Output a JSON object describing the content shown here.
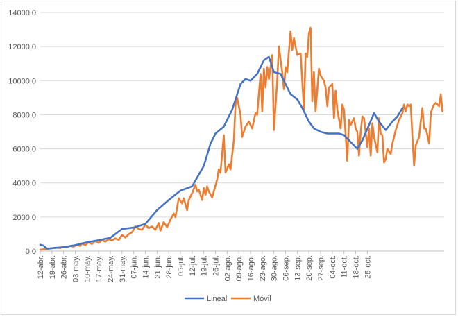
{
  "chart_data": {
    "type": "line",
    "title": "",
    "xlabel": "",
    "ylabel": "",
    "ylim": [
      0,
      14000
    ],
    "yticks": [
      "0,0",
      "2000,0",
      "4000,0",
      "6000,0",
      "8000,0",
      "10000,0",
      "12000,0",
      "14000,0"
    ],
    "ytick_values": [
      0,
      2000,
      4000,
      6000,
      8000,
      10000,
      12000,
      14000
    ],
    "grid": "horizontal",
    "legend_position": "bottom",
    "xtick_labels": [
      "12-abr.",
      "19-abr.",
      "26-abr.",
      "03-may.",
      "10-may.",
      "17-may.",
      "24-may.",
      "31-may.",
      "07-jun.",
      "14-jun.",
      "21-jun.",
      "28-jun.",
      "05-jul.",
      "12-jul.",
      "19-jul.",
      "26-jul.",
      "02-ago.",
      "09-ago.",
      "16-ago.",
      "23-ago.",
      "30-ago.",
      "06-sep.",
      "13-sep.",
      "20-sep.",
      "27-sep.",
      "04-oct.",
      "11-oct.",
      "18-oct.",
      "25-oct."
    ],
    "xtick_day_step": 7,
    "series": [
      {
        "name": "Lineal",
        "color": "#4472c4",
        "points": [
          [
            0,
            380
          ],
          [
            2,
            320
          ],
          [
            4,
            150
          ],
          [
            7,
            170
          ],
          [
            14,
            230
          ],
          [
            21,
            350
          ],
          [
            28,
            520
          ],
          [
            35,
            640
          ],
          [
            42,
            780
          ],
          [
            49,
            1300
          ],
          [
            56,
            1380
          ],
          [
            63,
            1600
          ],
          [
            70,
            2400
          ],
          [
            77,
            3000
          ],
          [
            84,
            3550
          ],
          [
            91,
            3800
          ],
          [
            98,
            5000
          ],
          [
            102,
            6300
          ],
          [
            105,
            6900
          ],
          [
            110,
            7300
          ],
          [
            115,
            8300
          ],
          [
            120,
            9800
          ],
          [
            123,
            10100
          ],
          [
            126,
            10000
          ],
          [
            130,
            10400
          ],
          [
            134,
            11200
          ],
          [
            137,
            11400
          ],
          [
            140,
            10500
          ],
          [
            144,
            10400
          ],
          [
            147,
            9800
          ],
          [
            150,
            9200
          ],
          [
            154,
            8900
          ],
          [
            157,
            8400
          ],
          [
            161,
            7600
          ],
          [
            164,
            7200
          ],
          [
            168,
            7000
          ],
          [
            172,
            6900
          ],
          [
            175,
            6900
          ],
          [
            179,
            6900
          ],
          [
            182,
            6800
          ],
          [
            186,
            6400
          ],
          [
            190,
            6000
          ],
          [
            193,
            6500
          ],
          [
            197,
            7400
          ],
          [
            200,
            8100
          ],
          [
            203,
            7600
          ],
          [
            207,
            7100
          ],
          [
            211,
            7600
          ],
          [
            214,
            7900
          ],
          [
            217,
            8400
          ]
        ]
      },
      {
        "name": "Móvil",
        "color": "#ed7d31",
        "points": [
          [
            0,
            80
          ],
          [
            3,
            120
          ],
          [
            6,
            150
          ],
          [
            9,
            200
          ],
          [
            12,
            180
          ],
          [
            14,
            250
          ],
          [
            16,
            230
          ],
          [
            18,
            300
          ],
          [
            20,
            260
          ],
          [
            22,
            380
          ],
          [
            24,
            300
          ],
          [
            25,
            450
          ],
          [
            27,
            350
          ],
          [
            29,
            520
          ],
          [
            31,
            420
          ],
          [
            33,
            600
          ],
          [
            35,
            480
          ],
          [
            37,
            650
          ],
          [
            39,
            550
          ],
          [
            41,
            700
          ],
          [
            43,
            620
          ],
          [
            45,
            750
          ],
          [
            47,
            650
          ],
          [
            49,
            950
          ],
          [
            51,
            800
          ],
          [
            53,
            1000
          ],
          [
            55,
            1100
          ],
          [
            57,
            1450
          ],
          [
            59,
            1300
          ],
          [
            61,
            1250
          ],
          [
            63,
            1550
          ],
          [
            65,
            1350
          ],
          [
            67,
            1450
          ],
          [
            69,
            1250
          ],
          [
            71,
            1650
          ],
          [
            72,
            1200
          ],
          [
            74,
            1700
          ],
          [
            76,
            1400
          ],
          [
            78,
            1850
          ],
          [
            80,
            2200
          ],
          [
            81,
            2000
          ],
          [
            83,
            3100
          ],
          [
            85,
            2800
          ],
          [
            86,
            3100
          ],
          [
            88,
            2400
          ],
          [
            89,
            3000
          ],
          [
            91,
            3400
          ],
          [
            93,
            3900
          ],
          [
            94,
            3500
          ],
          [
            95,
            3600
          ],
          [
            97,
            3000
          ],
          [
            98,
            3700
          ],
          [
            99,
            3300
          ],
          [
            100,
            3800
          ],
          [
            101,
            3500
          ],
          [
            103,
            3150
          ],
          [
            104,
            3500
          ],
          [
            106,
            4200
          ],
          [
            107,
            4800
          ],
          [
            108,
            4600
          ],
          [
            110,
            6800
          ],
          [
            111,
            4600
          ],
          [
            113,
            5100
          ],
          [
            114,
            4800
          ],
          [
            116,
            6500
          ],
          [
            117,
            8600
          ],
          [
            118,
            9000
          ],
          [
            120,
            8000
          ],
          [
            121,
            6700
          ],
          [
            123,
            7300
          ],
          [
            125,
            7600
          ],
          [
            127,
            7200
          ],
          [
            129,
            8100
          ],
          [
            130,
            8000
          ],
          [
            131,
            9200
          ],
          [
            132,
            10400
          ],
          [
            133,
            8200
          ],
          [
            134,
            10700
          ],
          [
            135,
            9600
          ],
          [
            136,
            10800
          ],
          [
            137,
            10100
          ],
          [
            139,
            11500
          ],
          [
            140,
            7100
          ],
          [
            142,
            10000
          ],
          [
            143,
            12000
          ],
          [
            145,
            10500
          ],
          [
            146,
            9500
          ],
          [
            147,
            10800
          ],
          [
            148,
            10500
          ],
          [
            150,
            12900
          ],
          [
            151,
            11800
          ],
          [
            152,
            12500
          ],
          [
            154,
            11500
          ],
          [
            156,
            11600
          ],
          [
            158,
            8300
          ],
          [
            159,
            11600
          ],
          [
            160,
            11400
          ],
          [
            161,
            12800
          ],
          [
            162,
            13100
          ],
          [
            163,
            8800
          ],
          [
            164,
            10500
          ],
          [
            165,
            8200
          ],
          [
            167,
            10700
          ],
          [
            168,
            10300
          ],
          [
            170,
            10000
          ],
          [
            171,
            9600
          ],
          [
            172,
            8500
          ],
          [
            173,
            9600
          ],
          [
            175,
            9800
          ],
          [
            176,
            7800
          ],
          [
            177,
            9400
          ],
          [
            178,
            8300
          ],
          [
            180,
            7200
          ],
          [
            181,
            8600
          ],
          [
            182,
            8300
          ],
          [
            184,
            5300
          ],
          [
            185,
            7700
          ],
          [
            186,
            7400
          ],
          [
            188,
            7800
          ],
          [
            189,
            7200
          ],
          [
            190,
            7000
          ],
          [
            191,
            5600
          ],
          [
            192,
            7000
          ],
          [
            193,
            7900
          ],
          [
            194,
            7800
          ],
          [
            196,
            6100
          ],
          [
            197,
            7200
          ],
          [
            198,
            5600
          ],
          [
            199,
            7500
          ],
          [
            200,
            6700
          ],
          [
            202,
            5800
          ],
          [
            203,
            7800
          ],
          [
            204,
            6900
          ],
          [
            205,
            6800
          ],
          [
            206,
            5200
          ],
          [
            207,
            5400
          ],
          [
            208,
            6000
          ],
          [
            210,
            5700
          ],
          [
            211,
            6300
          ],
          [
            213,
            7100
          ],
          [
            215,
            7700
          ],
          [
            216,
            7900
          ],
          [
            217,
            8100
          ],
          [
            218,
            8600
          ],
          [
            219,
            8200
          ],
          [
            220,
            8600
          ],
          [
            221,
            8500
          ],
          [
            222,
            8600
          ],
          [
            223,
            6700
          ],
          [
            224,
            5000
          ],
          [
            225,
            6200
          ],
          [
            227,
            6700
          ],
          [
            228,
            7600
          ],
          [
            229,
            8400
          ],
          [
            230,
            7200
          ],
          [
            231,
            7200
          ],
          [
            232,
            6800
          ],
          [
            233,
            6300
          ],
          [
            234,
            8100
          ],
          [
            235,
            8400
          ],
          [
            236,
            8600
          ],
          [
            237,
            8700
          ],
          [
            238,
            8600
          ],
          [
            239,
            8500
          ],
          [
            240,
            9200
          ],
          [
            241,
            8200
          ]
        ]
      }
    ]
  }
}
